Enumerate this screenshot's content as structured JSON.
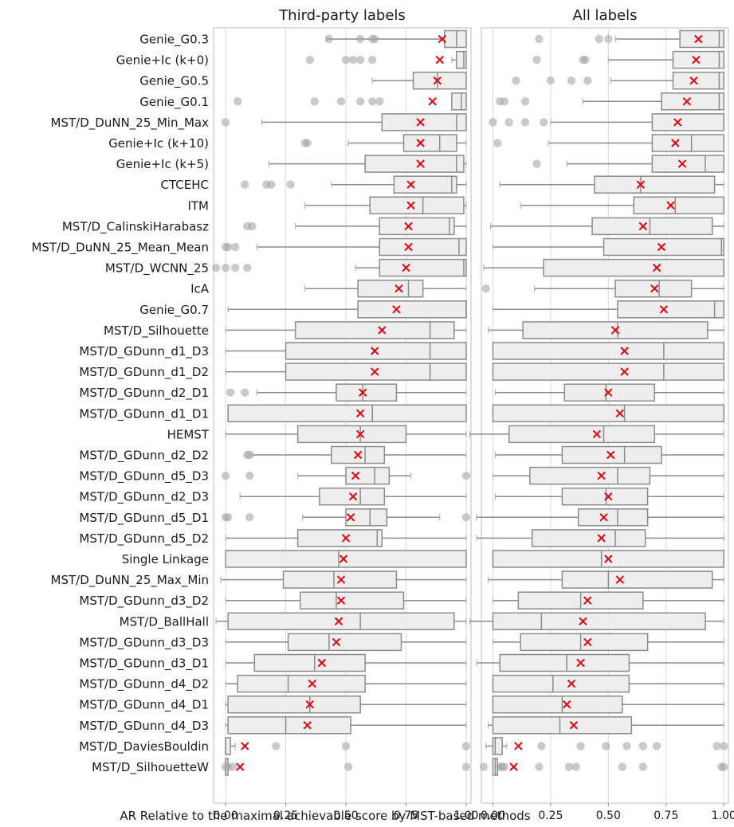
{
  "chart_data": {
    "type": "boxplot",
    "xlabel": "AR Relative to the maximal achievable score by MST-based methods",
    "xlim": [
      -0.05,
      1.02
    ],
    "xticks": [
      0.0,
      0.25,
      0.5,
      0.75,
      1.0
    ],
    "xtick_labels": [
      "0.00",
      "0.25",
      "0.50",
      "0.75",
      "1.00"
    ],
    "grid": true,
    "mean_marker": "red x",
    "colors": {
      "box_fill": "#eeeeee",
      "box_edge": "#8c8c8c",
      "mean": "#e8000b",
      "outlier": "#a6a6a6",
      "grid": "#d9d9d9"
    },
    "categories": [
      "Genie_G0.3",
      "Genie+Ic (k+0)",
      "Genie_G0.5",
      "Genie_G0.1",
      "MST/D_DuNN_25_Min_Max",
      "Genie+Ic (k+10)",
      "Genie+Ic (k+5)",
      "CTCEHC",
      "ITM",
      "MST/D_CalinskiHarabasz",
      "MST/D_DuNN_25_Mean_Mean",
      "MST/D_WCNN_25",
      "IcA",
      "Genie_G0.7",
      "MST/D_Silhouette",
      "MST/D_GDunn_d1_D3",
      "MST/D_GDunn_d1_D2",
      "MST/D_GDunn_d2_D1",
      "MST/D_GDunn_d1_D1",
      "HEMST",
      "MST/D_GDunn_d2_D2",
      "MST/D_GDunn_d5_D3",
      "MST/D_GDunn_d2_D3",
      "MST/D_GDunn_d5_D1",
      "MST/D_GDunn_d5_D2",
      "Single Linkage",
      "MST/D_DuNN_25_Max_Min",
      "MST/D_GDunn_d3_D2",
      "MST/D_BallHall",
      "MST/D_GDunn_d3_D3",
      "MST/D_GDunn_d3_D1",
      "MST/D_GDunn_d4_D2",
      "MST/D_GDunn_d4_D1",
      "MST/D_GDunn_d4_D3",
      "MST/D_DaviesBouldin",
      "MST/D_SilhouetteW"
    ],
    "panels": [
      {
        "title": "Third-party labels",
        "boxes": [
          {
            "wl": 0.42,
            "q1": 0.91,
            "med": 0.96,
            "q3": 1.0,
            "wh": 1.0,
            "mean": 0.9,
            "out": [
              0.43,
              0.56,
              0.61,
              0.62
            ]
          },
          {
            "wl": 0.94,
            "q1": 0.96,
            "med": 0.99,
            "q3": 1.0,
            "wh": 1.0,
            "mean": 0.89,
            "out": [
              0.35,
              0.5,
              0.53,
              0.56,
              0.61
            ]
          },
          {
            "wl": 0.61,
            "q1": 0.78,
            "med": 0.88,
            "q3": 1.0,
            "wh": 1.0,
            "mean": 0.88,
            "out": []
          },
          {
            "wl": 0.94,
            "q1": 0.94,
            "med": 0.98,
            "q3": 1.0,
            "wh": 1.0,
            "mean": 0.86,
            "out": [
              0.05,
              0.37,
              0.48,
              0.56,
              0.61,
              0.64
            ]
          },
          {
            "wl": 0.15,
            "q1": 0.65,
            "med": 0.96,
            "q3": 1.0,
            "wh": 1.0,
            "mean": 0.81,
            "out": [
              0.0
            ]
          },
          {
            "wl": 0.51,
            "q1": 0.74,
            "med": 0.89,
            "q3": 0.96,
            "wh": 1.0,
            "mean": 0.81,
            "out": [
              0.33,
              0.34
            ]
          },
          {
            "wl": 0.18,
            "q1": 0.58,
            "med": 0.96,
            "q3": 0.99,
            "wh": 1.0,
            "mean": 0.81,
            "out": []
          },
          {
            "wl": 0.44,
            "q1": 0.7,
            "med": 0.94,
            "q3": 0.96,
            "wh": 1.0,
            "mean": 0.77,
            "out": [
              0.08,
              0.17,
              0.19,
              0.27
            ]
          },
          {
            "wl": 0.33,
            "q1": 0.6,
            "med": 0.82,
            "q3": 0.99,
            "wh": 1.0,
            "mean": 0.77,
            "out": []
          },
          {
            "wl": 0.29,
            "q1": 0.64,
            "med": 0.93,
            "q3": 0.95,
            "wh": 1.0,
            "mean": 0.76,
            "out": [
              0.09,
              0.11
            ]
          },
          {
            "wl": 0.13,
            "q1": 0.64,
            "med": 0.97,
            "q3": 1.0,
            "wh": 1.0,
            "mean": 0.76,
            "out": [
              0.0,
              0.01,
              0.04
            ]
          },
          {
            "wl": 0.54,
            "q1": 0.64,
            "med": 0.99,
            "q3": 1.0,
            "wh": 1.0,
            "mean": 0.75,
            "out": [
              -0.04,
              0.0,
              0.04,
              0.09
            ]
          },
          {
            "wl": 0.33,
            "q1": 0.55,
            "med": 0.76,
            "q3": 0.82,
            "wh": 1.0,
            "mean": 0.72,
            "out": []
          },
          {
            "wl": 0.01,
            "q1": 0.55,
            "med": 1.0,
            "q3": 1.0,
            "wh": 1.0,
            "mean": 0.71,
            "out": []
          },
          {
            "wl": 0.0,
            "q1": 0.29,
            "med": 0.85,
            "q3": 0.95,
            "wh": 1.0,
            "mean": 0.65,
            "out": []
          },
          {
            "wl": 0.0,
            "q1": 0.25,
            "med": 0.85,
            "q3": 1.0,
            "wh": 1.0,
            "mean": 0.62,
            "out": []
          },
          {
            "wl": 0.0,
            "q1": 0.25,
            "med": 0.85,
            "q3": 1.0,
            "wh": 1.0,
            "mean": 0.62,
            "out": []
          },
          {
            "wl": 0.13,
            "q1": 0.46,
            "med": 0.57,
            "q3": 0.71,
            "wh": 1.0,
            "mean": 0.57,
            "out": [
              0.02,
              0.08
            ]
          },
          {
            "wl": 0.01,
            "q1": 0.01,
            "med": 0.61,
            "q3": 1.0,
            "wh": 1.0,
            "mean": 0.56,
            "out": []
          },
          {
            "wl": 0.0,
            "q1": 0.3,
            "med": 0.56,
            "q3": 0.75,
            "wh": 1.0,
            "mean": 0.56,
            "out": []
          },
          {
            "wl": 0.11,
            "q1": 0.44,
            "med": 0.58,
            "q3": 0.66,
            "wh": 1.0,
            "mean": 0.55,
            "out": [
              0.09,
              0.1
            ]
          },
          {
            "wl": 0.3,
            "q1": 0.5,
            "med": 0.62,
            "q3": 0.68,
            "wh": 0.77,
            "mean": 0.54,
            "out": [
              0.0,
              0.1,
              1.0
            ]
          },
          {
            "wl": 0.06,
            "q1": 0.39,
            "med": 0.56,
            "q3": 0.66,
            "wh": 1.0,
            "mean": 0.53,
            "out": []
          },
          {
            "wl": 0.32,
            "q1": 0.5,
            "med": 0.6,
            "q3": 0.67,
            "wh": 0.89,
            "mean": 0.52,
            "out": [
              0.0,
              0.01,
              0.1,
              1.0
            ]
          },
          {
            "wl": 0.0,
            "q1": 0.3,
            "med": 0.63,
            "q3": 0.65,
            "wh": 1.0,
            "mean": 0.5,
            "out": []
          },
          {
            "wl": 0.0,
            "q1": 0.0,
            "med": 0.47,
            "q3": 1.0,
            "wh": 1.0,
            "mean": 0.49,
            "out": []
          },
          {
            "wl": -0.02,
            "q1": 0.24,
            "med": 0.45,
            "q3": 0.71,
            "wh": 1.0,
            "mean": 0.48,
            "out": []
          },
          {
            "wl": 0.0,
            "q1": 0.31,
            "med": 0.46,
            "q3": 0.74,
            "wh": 1.0,
            "mean": 0.48,
            "out": []
          },
          {
            "wl": -0.04,
            "q1": 0.01,
            "med": 0.56,
            "q3": 0.95,
            "wh": 1.0,
            "mean": 0.47,
            "out": []
          },
          {
            "wl": 0.0,
            "q1": 0.26,
            "med": 0.43,
            "q3": 0.73,
            "wh": 1.0,
            "mean": 0.46,
            "out": []
          },
          {
            "wl": 0.0,
            "q1": 0.12,
            "med": 0.37,
            "q3": 0.58,
            "wh": 1.0,
            "mean": 0.4,
            "out": []
          },
          {
            "wl": 0.0,
            "q1": 0.05,
            "med": 0.26,
            "q3": 0.58,
            "wh": 1.0,
            "mean": 0.36,
            "out": []
          },
          {
            "wl": 0.0,
            "q1": 0.01,
            "med": 0.35,
            "q3": 0.56,
            "wh": 1.0,
            "mean": 0.35,
            "out": []
          },
          {
            "wl": 0.0,
            "q1": 0.01,
            "med": 0.25,
            "q3": 0.52,
            "wh": 1.0,
            "mean": 0.34,
            "out": []
          },
          {
            "wl": 0.0,
            "q1": 0.0,
            "med": 0.0,
            "q3": 0.02,
            "wh": 0.04,
            "mean": 0.08,
            "out": [
              0.21,
              0.5,
              1.0
            ]
          },
          {
            "wl": 0.0,
            "q1": 0.0,
            "med": 0.0,
            "q3": 0.01,
            "wh": 0.01,
            "mean": 0.06,
            "out": [
              0.0,
              0.01,
              0.03,
              0.51,
              1.0
            ]
          }
        ]
      },
      {
        "title": "All labels",
        "boxes": [
          {
            "wl": 0.53,
            "q1": 0.81,
            "med": 0.98,
            "q3": 1.0,
            "wh": 1.0,
            "mean": 0.89,
            "out": [
              0.2,
              0.46,
              0.5
            ]
          },
          {
            "wl": 0.5,
            "q1": 0.78,
            "med": 0.98,
            "q3": 1.0,
            "wh": 1.0,
            "mean": 0.88,
            "out": [
              0.19,
              0.39,
              0.4
            ]
          },
          {
            "wl": 0.51,
            "q1": 0.78,
            "med": 0.98,
            "q3": 1.0,
            "wh": 1.0,
            "mean": 0.87,
            "out": [
              0.1,
              0.25,
              0.34,
              0.41
            ]
          },
          {
            "wl": 0.39,
            "q1": 0.73,
            "med": 0.98,
            "q3": 1.0,
            "wh": 1.0,
            "mean": 0.84,
            "out": [
              0.03,
              0.05,
              0.14
            ]
          },
          {
            "wl": 0.25,
            "q1": 0.69,
            "med": 1.0,
            "q3": 1.0,
            "wh": 1.0,
            "mean": 0.8,
            "out": [
              0.0,
              0.07,
              0.14,
              0.22
            ]
          },
          {
            "wl": 0.24,
            "q1": 0.69,
            "med": 0.86,
            "q3": 1.0,
            "wh": 1.0,
            "mean": 0.79,
            "out": [
              0.02
            ]
          },
          {
            "wl": 0.32,
            "q1": 0.69,
            "med": 0.92,
            "q3": 1.0,
            "wh": 1.0,
            "mean": 0.82,
            "out": [
              0.19
            ]
          },
          {
            "wl": 0.03,
            "q1": 0.44,
            "med": 0.64,
            "q3": 0.96,
            "wh": 1.0,
            "mean": 0.64,
            "out": []
          },
          {
            "wl": 0.12,
            "q1": 0.61,
            "med": 0.79,
            "q3": 1.0,
            "wh": 1.0,
            "mean": 0.77,
            "out": []
          },
          {
            "wl": -0.01,
            "q1": 0.43,
            "med": 0.68,
            "q3": 0.95,
            "wh": 1.0,
            "mean": 0.65,
            "out": []
          },
          {
            "wl": 0.0,
            "q1": 0.48,
            "med": 0.99,
            "q3": 1.0,
            "wh": 1.0,
            "mean": 0.73,
            "out": []
          },
          {
            "wl": -0.04,
            "q1": 0.22,
            "med": 1.0,
            "q3": 1.0,
            "wh": 1.0,
            "mean": 0.71,
            "out": []
          },
          {
            "wl": 0.18,
            "q1": 0.53,
            "med": 0.72,
            "q3": 0.86,
            "wh": 1.0,
            "mean": 0.7,
            "out": [
              -0.03
            ]
          },
          {
            "wl": 0.0,
            "q1": 0.54,
            "med": 0.96,
            "q3": 1.0,
            "wh": 1.0,
            "mean": 0.74,
            "out": []
          },
          {
            "wl": -0.02,
            "q1": 0.13,
            "med": 0.54,
            "q3": 0.93,
            "wh": 1.0,
            "mean": 0.53,
            "out": []
          },
          {
            "wl": 0.0,
            "q1": 0.0,
            "med": 0.74,
            "q3": 1.0,
            "wh": 1.0,
            "mean": 0.57,
            "out": []
          },
          {
            "wl": 0.0,
            "q1": 0.0,
            "med": 0.74,
            "q3": 1.0,
            "wh": 1.0,
            "mean": 0.57,
            "out": []
          },
          {
            "wl": 0.01,
            "q1": 0.31,
            "med": 0.49,
            "q3": 0.7,
            "wh": 1.0,
            "mean": 0.5,
            "out": []
          },
          {
            "wl": 0.0,
            "q1": 0.0,
            "med": 0.57,
            "q3": 1.0,
            "wh": 1.0,
            "mean": 0.55,
            "out": []
          },
          {
            "wl": -0.1,
            "q1": 0.07,
            "med": 0.48,
            "q3": 0.7,
            "wh": 1.0,
            "mean": 0.45,
            "out": []
          },
          {
            "wl": 0.01,
            "q1": 0.3,
            "med": 0.57,
            "q3": 0.73,
            "wh": 1.0,
            "mean": 0.51,
            "out": []
          },
          {
            "wl": 0.0,
            "q1": 0.16,
            "med": 0.54,
            "q3": 0.68,
            "wh": 1.0,
            "mean": 0.47,
            "out": []
          },
          {
            "wl": 0.01,
            "q1": 0.3,
            "med": 0.49,
            "q3": 0.67,
            "wh": 1.0,
            "mean": 0.5,
            "out": []
          },
          {
            "wl": -0.07,
            "q1": 0.37,
            "med": 0.54,
            "q3": 0.67,
            "wh": 1.0,
            "mean": 0.48,
            "out": []
          },
          {
            "wl": -0.07,
            "q1": 0.17,
            "med": 0.53,
            "q3": 0.66,
            "wh": 1.0,
            "mean": 0.47,
            "out": []
          },
          {
            "wl": 0.0,
            "q1": 0.0,
            "med": 0.47,
            "q3": 1.0,
            "wh": 1.0,
            "mean": 0.5,
            "out": []
          },
          {
            "wl": -0.02,
            "q1": 0.3,
            "med": 0.5,
            "q3": 0.95,
            "wh": 1.0,
            "mean": 0.55,
            "out": []
          },
          {
            "wl": 0.0,
            "q1": 0.11,
            "med": 0.38,
            "q3": 0.65,
            "wh": 1.0,
            "mean": 0.41,
            "out": []
          },
          {
            "wl": -0.1,
            "q1": 0.0,
            "med": 0.21,
            "q3": 0.92,
            "wh": 1.0,
            "mean": 0.39,
            "out": []
          },
          {
            "wl": 0.0,
            "q1": 0.12,
            "med": 0.38,
            "q3": 0.67,
            "wh": 1.0,
            "mean": 0.41,
            "out": []
          },
          {
            "wl": -0.07,
            "q1": 0.03,
            "med": 0.32,
            "q3": 0.59,
            "wh": 1.0,
            "mean": 0.38,
            "out": []
          },
          {
            "wl": 0.0,
            "q1": 0.0,
            "med": 0.26,
            "q3": 0.59,
            "wh": 1.0,
            "mean": 0.34,
            "out": []
          },
          {
            "wl": 0.0,
            "q1": 0.0,
            "med": 0.3,
            "q3": 0.56,
            "wh": 1.0,
            "mean": 0.32,
            "out": []
          },
          {
            "wl": -0.02,
            "q1": 0.0,
            "med": 0.29,
            "q3": 0.6,
            "wh": 1.0,
            "mean": 0.35,
            "out": []
          },
          {
            "wl": -0.03,
            "q1": 0.0,
            "med": 0.01,
            "q3": 0.04,
            "wh": 0.06,
            "mean": 0.11,
            "out": [
              0.21,
              0.38,
              0.49,
              0.58,
              0.65,
              0.71,
              0.97,
              1.0
            ]
          },
          {
            "wl": 0.0,
            "q1": 0.0,
            "med": 0.01,
            "q3": 0.02,
            "wh": 0.03,
            "mean": 0.09,
            "out": [
              -0.04,
              0.03,
              0.04,
              0.05,
              0.2,
              0.33,
              0.36,
              0.56,
              0.65,
              0.99,
              1.0
            ]
          }
        ]
      }
    ]
  }
}
